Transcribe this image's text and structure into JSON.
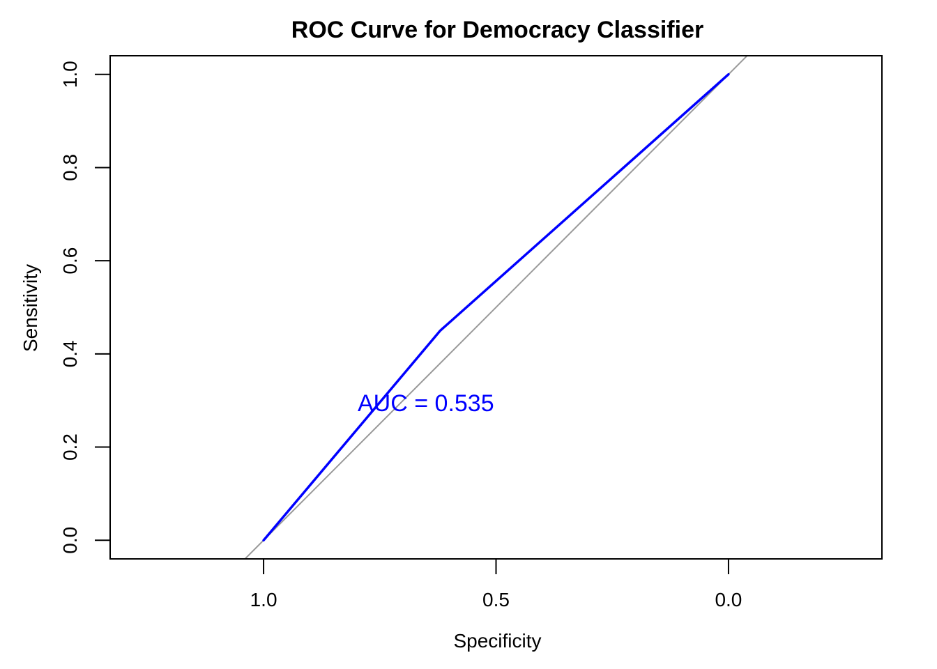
{
  "chart_data": {
    "type": "line",
    "title": "ROC Curve for Democracy Classifier",
    "xlabel": "Specificity",
    "ylabel": "Sensitivity",
    "x_reversed": true,
    "xlim": [
      1.33,
      -0.33
    ],
    "ylim": [
      -0.04,
      1.04
    ],
    "xticks": [
      1.0,
      0.5,
      0.0
    ],
    "xtick_labels": [
      "1.0",
      "0.5",
      "0.0"
    ],
    "yticks": [
      0.0,
      0.2,
      0.4,
      0.6,
      0.8,
      1.0
    ],
    "ytick_labels": [
      "0.0",
      "0.2",
      "0.4",
      "0.6",
      "0.8",
      "1.0"
    ],
    "grid": false,
    "reference_line": {
      "description": "diagonal chance line sensitivity = 1 - specificity",
      "color": "#999999"
    },
    "series": [
      {
        "specificity": [
          1.0,
          0.62,
          0.0
        ],
        "sensitivity": [
          0.0,
          0.45,
          1.0
        ],
        "color": "#0000ff"
      }
    ],
    "annotation": {
      "text": "AUC = 0.535",
      "specificity": 0.6,
      "sensitivity": 0.295,
      "color": "#0000ff"
    }
  }
}
